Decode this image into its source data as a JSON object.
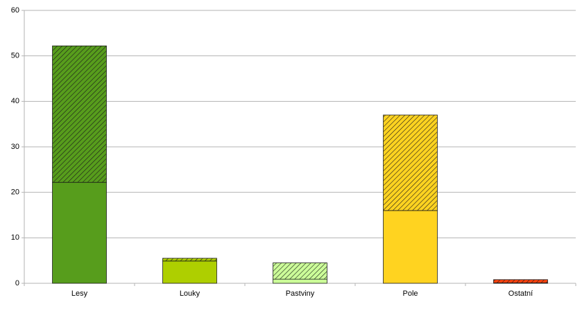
{
  "chart_data": {
    "type": "stacked_bar",
    "categories": [
      "Lesy",
      "Louky",
      "Pastviny",
      "Pole",
      "Ostatní"
    ],
    "colors": [
      "#579d1c",
      "#aecf00",
      "#ccff99",
      "#ffd320",
      "#ff420e"
    ],
    "series": [
      {
        "values": [
          22.2,
          4.9,
          0.9,
          16,
          0.1
        ],
        "hatch": false
      },
      {
        "values": [
          30,
          0.6,
          3.6,
          21,
          0.7
        ],
        "hatch": true
      }
    ],
    "ylim": [
      0,
      60
    ],
    "yticks": [
      0,
      10,
      20,
      30,
      40,
      50,
      60
    ],
    "grid": true
  }
}
